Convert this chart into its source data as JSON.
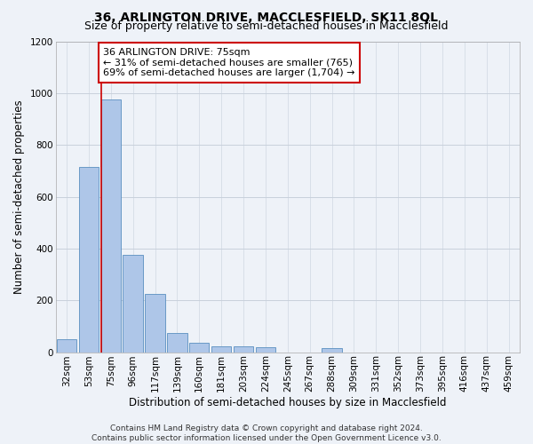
{
  "title": "36, ARLINGTON DRIVE, MACCLESFIELD, SK11 8QL",
  "subtitle": "Size of property relative to semi-detached houses in Macclesfield",
  "xlabel": "Distribution of semi-detached houses by size in Macclesfield",
  "ylabel": "Number of semi-detached properties",
  "categories": [
    "32sqm",
    "53sqm",
    "75sqm",
    "96sqm",
    "117sqm",
    "139sqm",
    "160sqm",
    "181sqm",
    "203sqm",
    "224sqm",
    "245sqm",
    "267sqm",
    "288sqm",
    "309sqm",
    "331sqm",
    "352sqm",
    "373sqm",
    "395sqm",
    "416sqm",
    "437sqm",
    "459sqm"
  ],
  "values": [
    50,
    715,
    975,
    375,
    225,
    75,
    35,
    22,
    22,
    18,
    0,
    0,
    16,
    0,
    0,
    0,
    0,
    0,
    0,
    0,
    0
  ],
  "bar_color": "#aec6e8",
  "bar_edge_color": "#5a8fc0",
  "highlight_index": 2,
  "highlight_line_color": "#cc0000",
  "annotation_text": "36 ARLINGTON DRIVE: 75sqm\n← 31% of semi-detached houses are smaller (765)\n69% of semi-detached houses are larger (1,704) →",
  "annotation_box_color": "#ffffff",
  "annotation_box_edge_color": "#cc0000",
  "ylim": [
    0,
    1200
  ],
  "yticks": [
    0,
    200,
    400,
    600,
    800,
    1000,
    1200
  ],
  "footer": "Contains HM Land Registry data © Crown copyright and database right 2024.\nContains public sector information licensed under the Open Government Licence v3.0.",
  "bg_color": "#eef2f8",
  "grid_color": "#c8d0dc",
  "title_fontsize": 10,
  "subtitle_fontsize": 9,
  "xlabel_fontsize": 8.5,
  "ylabel_fontsize": 8.5,
  "tick_fontsize": 7.5,
  "annotation_fontsize": 8,
  "footer_fontsize": 6.5
}
